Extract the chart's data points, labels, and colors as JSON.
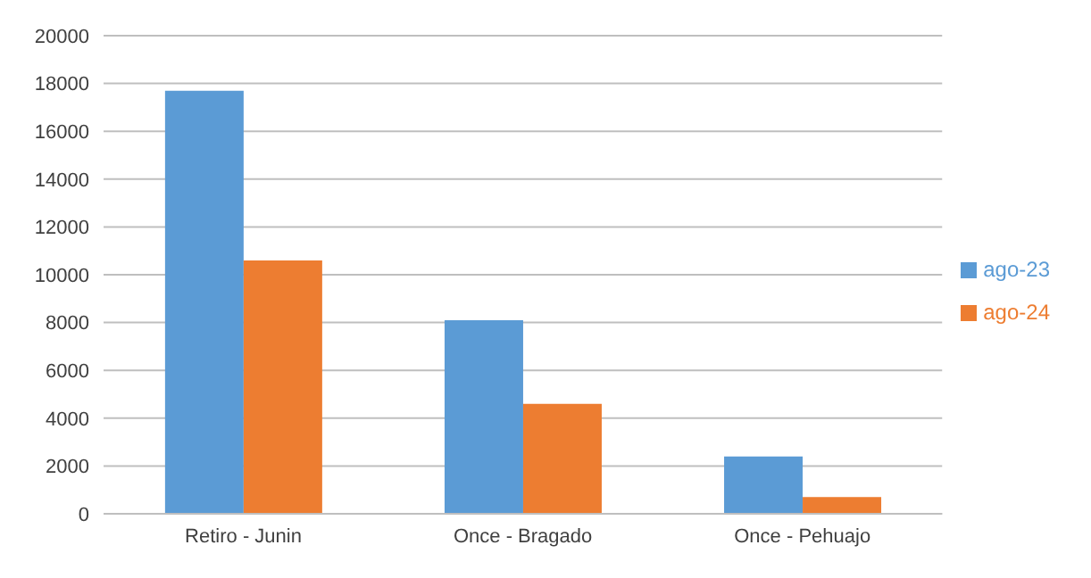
{
  "chart_data": {
    "type": "bar",
    "categories": [
      "Retiro - Junin",
      "Once - Bragado",
      "Once - Pehuajo"
    ],
    "series": [
      {
        "name": "ago-23",
        "color": "#5b9bd5",
        "values": [
          17700,
          8100,
          2400
        ]
      },
      {
        "name": "ago-24",
        "color": "#ed7d31",
        "values": [
          10600,
          4600,
          700
        ]
      }
    ],
    "ylim": [
      0,
      20000
    ],
    "yticks": [
      0,
      2000,
      4000,
      6000,
      8000,
      10000,
      12000,
      14000,
      16000,
      18000,
      20000
    ],
    "grid": "y",
    "legend": "right"
  }
}
